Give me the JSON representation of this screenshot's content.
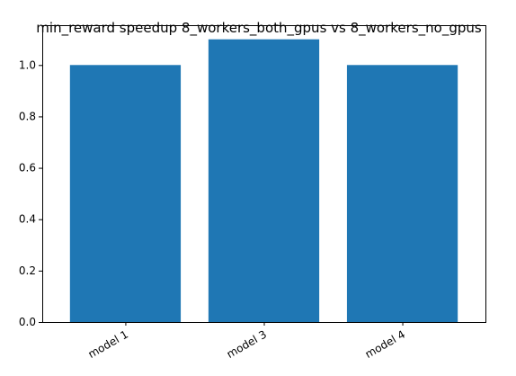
{
  "chart_data": {
    "type": "bar",
    "title": "min_reward speedup 8_workers_both_gpus vs 8_workers_no_gpus",
    "xlabel": "",
    "ylabel": "",
    "categories": [
      "model 1",
      "model 3",
      "model 4"
    ],
    "values": [
      1.0,
      1.1,
      1.0
    ],
    "ylim": [
      0,
      1.155
    ],
    "yticks": [
      "0.0",
      "0.2",
      "0.4",
      "0.6",
      "0.8",
      "1.0"
    ],
    "grid": false,
    "bar_color": "#1f77b4",
    "xtick_rotation": "30"
  }
}
